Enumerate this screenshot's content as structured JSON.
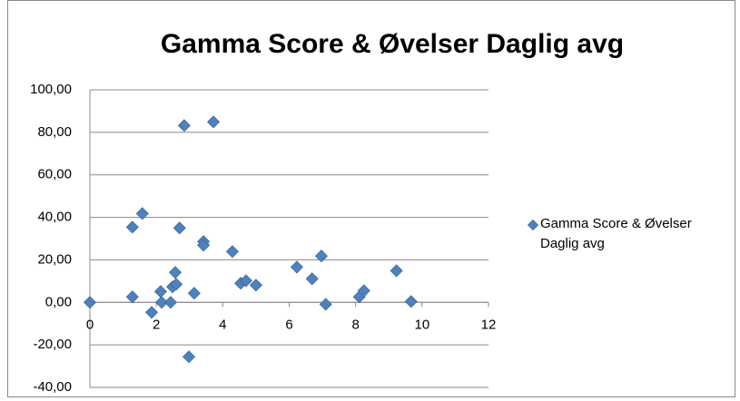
{
  "chart_data": {
    "type": "scatter",
    "title": "Gamma Score & Øvelser Daglig avg",
    "series": [
      {
        "name": "Gamma Score & Øvelser Daglig avg",
        "color": "#4f81bd",
        "x": [
          0,
          1.28,
          1.58,
          1.28,
          1.86,
          2.13,
          2.16,
          2.43,
          2.49,
          2.6,
          2.57,
          2.7,
          2.84,
          2.98,
          3.14,
          3.42,
          3.42,
          3.72,
          4.29,
          4.54,
          4.7,
          5.0,
          6.23,
          6.69,
          6.97,
          7.1,
          8.11,
          8.25,
          9.23,
          9.67
        ],
        "values": [
          0,
          35.4,
          41.8,
          2.6,
          -4.7,
          5.1,
          0,
          0,
          7.3,
          8.5,
          14.1,
          35,
          83.2,
          -25.6,
          4.3,
          28.6,
          26.9,
          84.9,
          23.9,
          9,
          10.2,
          8.1,
          16.6,
          11.1,
          21.8,
          -0.9,
          2.6,
          5.5,
          14.9,
          0.4
        ]
      }
    ],
    "xlim": [
      0,
      12
    ],
    "xticks": [
      0,
      2,
      4,
      6,
      8,
      10,
      12
    ],
    "ylim": [
      -40,
      100
    ],
    "yticks": [
      {
        "value": -40,
        "label": "-40,00"
      },
      {
        "value": -20,
        "label": "-20,00"
      },
      {
        "value": 0,
        "label": "0,00"
      },
      {
        "value": 20,
        "label": "20,00"
      },
      {
        "value": 40,
        "label": "40,00"
      },
      {
        "value": 60,
        "label": "60,00"
      },
      {
        "value": 80,
        "label": "80,00"
      },
      {
        "value": 100,
        "label": "100,00"
      }
    ],
    "grid": true,
    "legend": "right"
  }
}
